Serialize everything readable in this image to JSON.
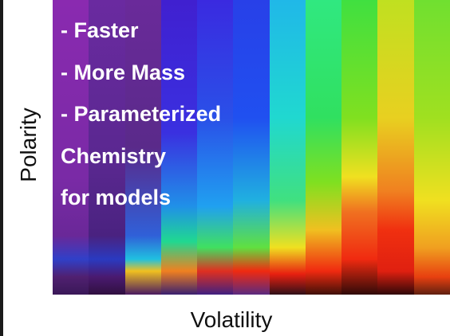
{
  "axis_labels": {
    "y": "Polarity",
    "x": "Volatility"
  },
  "overlay": {
    "lines": [
      "- Faster",
      "- More Mass",
      "- Parameterized",
      "Chemistry",
      "for models"
    ]
  }
}
